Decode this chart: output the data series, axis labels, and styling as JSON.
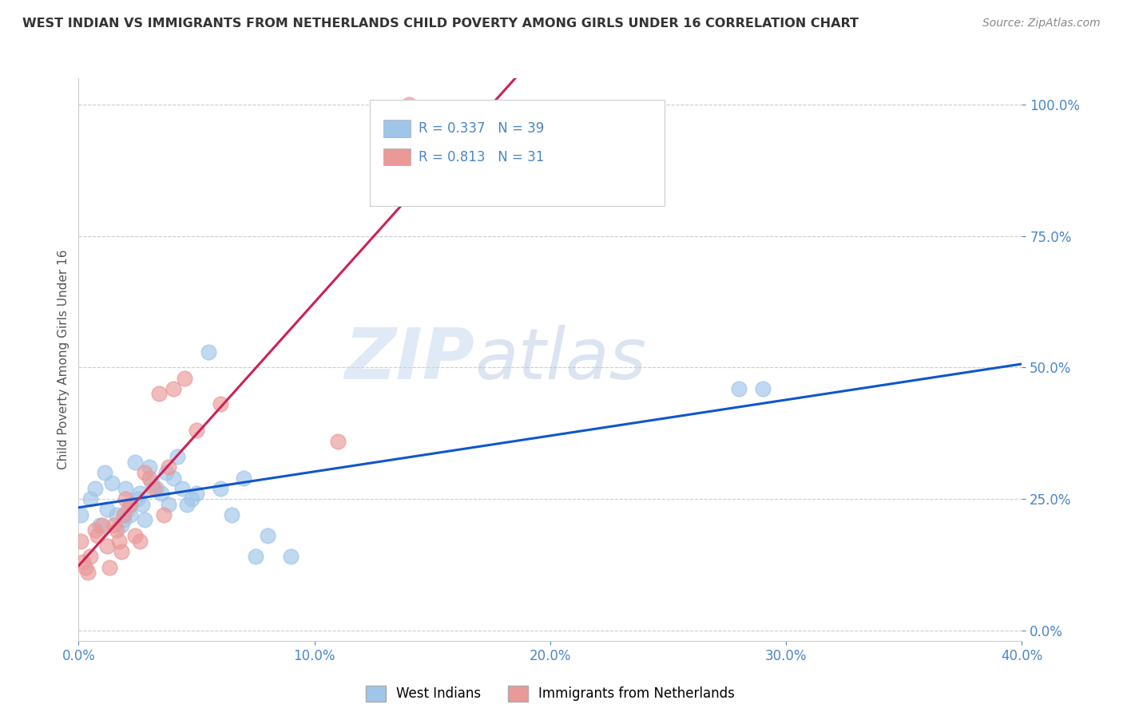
{
  "title": "WEST INDIAN VS IMMIGRANTS FROM NETHERLANDS CHILD POVERTY AMONG GIRLS UNDER 16 CORRELATION CHART",
  "source": "Source: ZipAtlas.com",
  "xlabel_ticks": [
    "0.0%",
    "",
    "",
    "",
    "",
    "10.0%",
    "",
    "",
    "",
    "",
    "20.0%",
    "",
    "",
    "",
    "",
    "30.0%",
    "",
    "",
    "",
    "",
    "40.0%"
  ],
  "xlim": [
    0.0,
    0.4
  ],
  "ylim": [
    -0.02,
    1.05
  ],
  "ylabel": "Child Poverty Among Girls Under 16",
  "legend_labels": [
    "West Indians",
    "Immigrants from Netherlands"
  ],
  "legend_R_vals": [
    "0.337",
    "0.813"
  ],
  "legend_N_vals": [
    "39",
    "31"
  ],
  "blue_color": "#9fc5e8",
  "pink_color": "#ea9999",
  "line_blue": "#1155cc",
  "line_pink": "#cc2255",
  "west_indians_x": [
    0.001,
    0.005,
    0.007,
    0.009,
    0.011,
    0.012,
    0.014,
    0.016,
    0.018,
    0.019,
    0.02,
    0.021,
    0.022,
    0.024,
    0.025,
    0.026,
    0.027,
    0.028,
    0.03,
    0.031,
    0.033,
    0.035,
    0.037,
    0.038,
    0.04,
    0.042,
    0.044,
    0.046,
    0.048,
    0.05,
    0.055,
    0.06,
    0.065,
    0.07,
    0.075,
    0.08,
    0.09,
    0.28,
    0.29
  ],
  "west_indians_y": [
    0.22,
    0.25,
    0.27,
    0.2,
    0.3,
    0.23,
    0.28,
    0.22,
    0.2,
    0.21,
    0.27,
    0.23,
    0.22,
    0.32,
    0.25,
    0.26,
    0.24,
    0.21,
    0.31,
    0.28,
    0.27,
    0.26,
    0.3,
    0.24,
    0.29,
    0.33,
    0.27,
    0.24,
    0.25,
    0.26,
    0.53,
    0.27,
    0.22,
    0.29,
    0.14,
    0.18,
    0.14,
    0.46,
    0.46
  ],
  "netherlands_x": [
    0.001,
    0.002,
    0.003,
    0.004,
    0.005,
    0.007,
    0.008,
    0.01,
    0.012,
    0.013,
    0.015,
    0.016,
    0.017,
    0.018,
    0.019,
    0.02,
    0.022,
    0.024,
    0.026,
    0.028,
    0.03,
    0.032,
    0.034,
    0.036,
    0.038,
    0.04,
    0.045,
    0.05,
    0.06,
    0.11,
    0.14
  ],
  "netherlands_y": [
    0.17,
    0.13,
    0.12,
    0.11,
    0.14,
    0.19,
    0.18,
    0.2,
    0.16,
    0.12,
    0.2,
    0.19,
    0.17,
    0.15,
    0.22,
    0.25,
    0.24,
    0.18,
    0.17,
    0.3,
    0.29,
    0.27,
    0.45,
    0.22,
    0.31,
    0.46,
    0.48,
    0.38,
    0.43,
    0.36,
    1.0
  ],
  "watermark_zip": "ZIP",
  "watermark_atlas": "atlas",
  "background_color": "#ffffff",
  "grid_color": "#cccccc",
  "tick_color": "#4a86c8",
  "title_color": "#333333",
  "source_color": "#888888",
  "ylabel_color": "#555555"
}
